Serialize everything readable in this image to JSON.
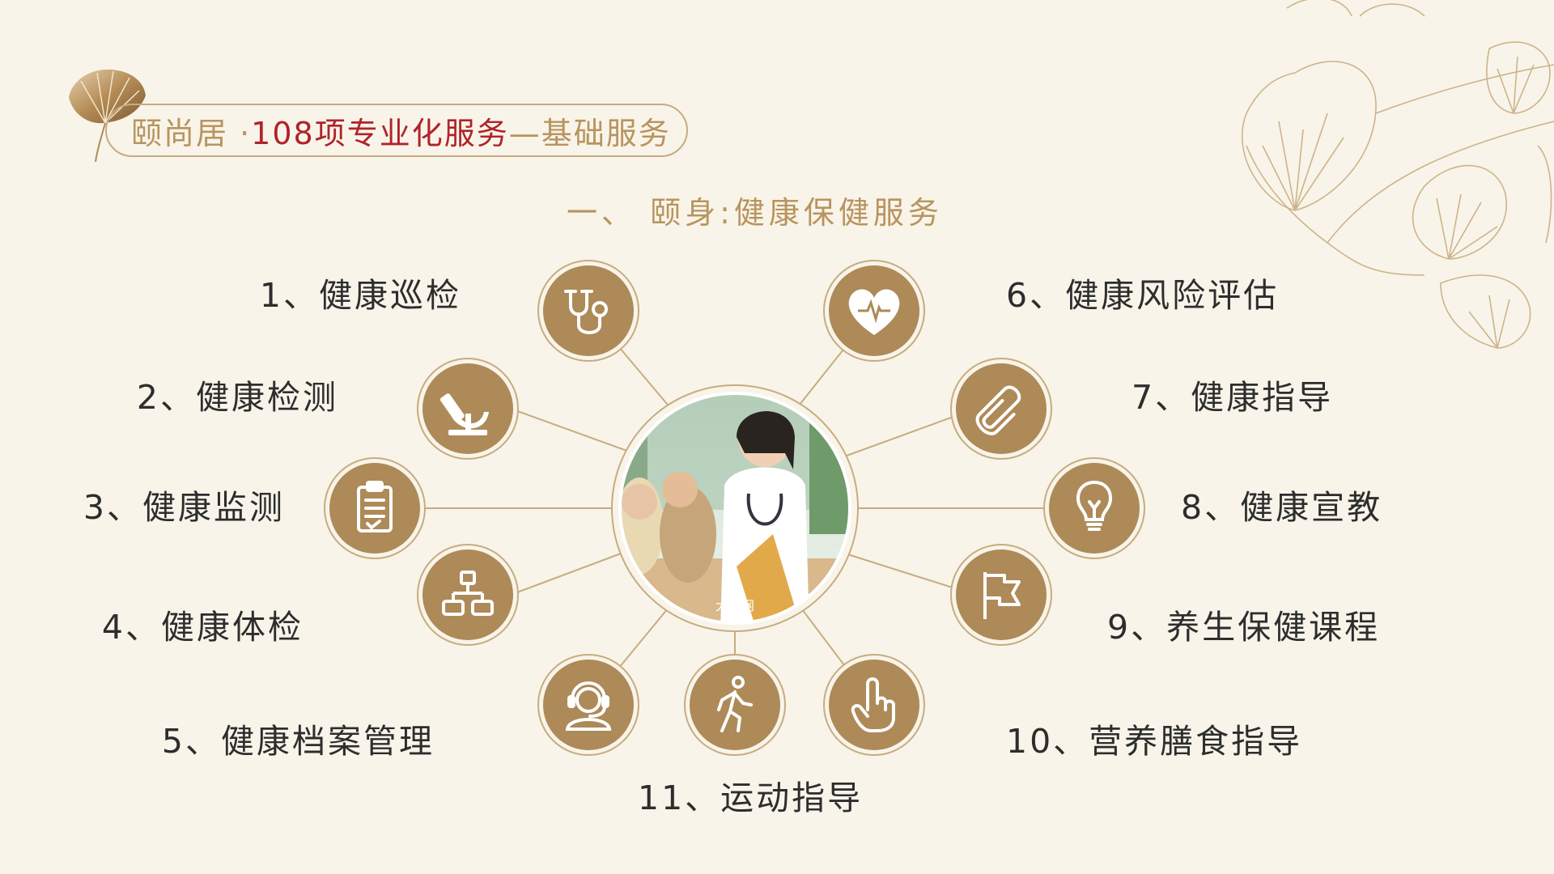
{
  "header": {
    "brand": "颐尚居 · ",
    "title_main": "108项专业化服务",
    "title_suffix": "—基础服务"
  },
  "section": {
    "title": "一、 颐身:健康保健服务"
  },
  "center_photo": {
    "description": "doctor-with-elderly-couple-photo",
    "watermark": "大图网"
  },
  "colors": {
    "background": "#f8f4e9",
    "gold": "#b8945e",
    "icon_fill": "#ad8a58",
    "line": "#c7ac80",
    "title_red": "#b0232a",
    "text": "#2d2d2d"
  },
  "services": [
    {
      "label": "1、健康巡检",
      "icon": "stethoscope-icon"
    },
    {
      "label": "2、健康检测",
      "icon": "microscope-icon"
    },
    {
      "label": "3、健康监测",
      "icon": "clipboard-icon"
    },
    {
      "label": "4、健康体检",
      "icon": "flowchart-icon"
    },
    {
      "label": "5、健康档案管理",
      "icon": "headset-person-icon"
    },
    {
      "label": "6、健康风险评估",
      "icon": "heart-pulse-icon"
    },
    {
      "label": "7、健康指导",
      "icon": "paperclip-icon"
    },
    {
      "label": "8、健康宣教",
      "icon": "lightbulb-icon"
    },
    {
      "label": "9、养生保健课程",
      "icon": "flag-icon"
    },
    {
      "label": "10、营养膳食指导",
      "icon": "pointing-hand-icon"
    },
    {
      "label": "11、运动指导",
      "icon": "walking-person-icon"
    }
  ]
}
